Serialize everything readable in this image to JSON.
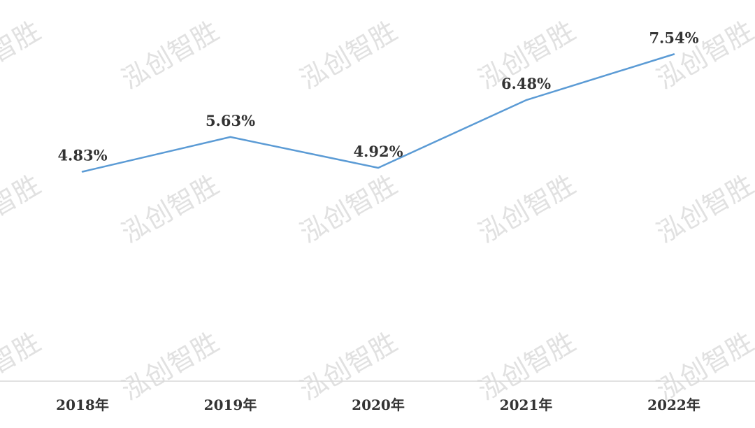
{
  "watermark": {
    "text": "泓创智胜"
  },
  "chart_data": {
    "type": "line",
    "title": "",
    "xlabel": "",
    "ylabel": "",
    "categories": [
      "2018年",
      "2019年",
      "2020年",
      "2021年",
      "2022年"
    ],
    "series": [
      {
        "values": [
          4.83,
          5.63,
          4.92,
          6.48,
          7.54
        ],
        "data_labels": [
          "4.83%",
          "5.63%",
          "4.92%",
          "6.48%",
          "7.54%"
        ],
        "color": "#5b9bd5"
      }
    ],
    "ylim": [
      0,
      8
    ],
    "grid": false,
    "legend": "none",
    "baseline_color": "#d9d9d9",
    "label_color": "#333333"
  }
}
